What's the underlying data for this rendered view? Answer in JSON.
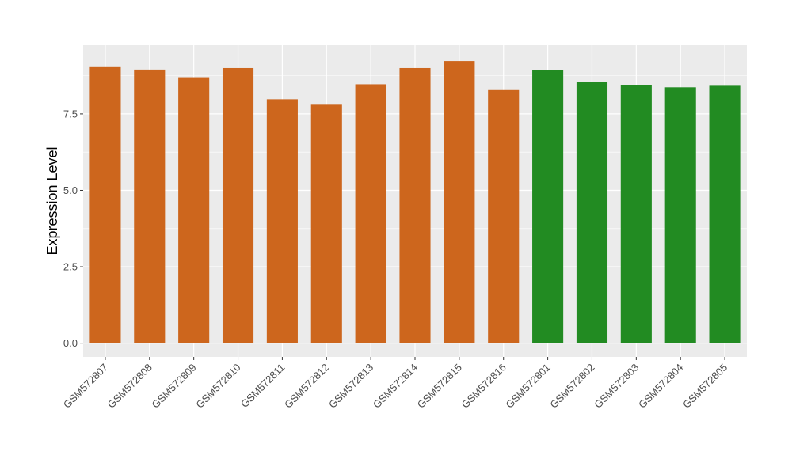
{
  "chart_data": {
    "type": "bar",
    "title": "",
    "xlabel": "",
    "ylabel": "Expression Level",
    "ylim": [
      -0.45,
      9.75
    ],
    "yticks": [
      0.0,
      2.5,
      5.0,
      7.5
    ],
    "ytick_labels": [
      "0.0",
      "2.5",
      "5.0",
      "7.5"
    ],
    "grid": true,
    "legend": "none",
    "categories": [
      "GSM572807",
      "GSM572808",
      "GSM572809",
      "GSM572810",
      "GSM572811",
      "GSM572812",
      "GSM572813",
      "GSM572814",
      "GSM572815",
      "GSM572816",
      "GSM572801",
      "GSM572802",
      "GSM572803",
      "GSM572804",
      "GSM572805"
    ],
    "values": [
      9.03,
      8.95,
      8.7,
      9.0,
      7.98,
      7.8,
      8.47,
      9.0,
      9.23,
      8.28,
      8.93,
      8.55,
      8.45,
      8.37,
      8.42
    ],
    "bar_colors": [
      "#CD661D",
      "#CD661D",
      "#CD661D",
      "#CD661D",
      "#CD661D",
      "#CD661D",
      "#CD661D",
      "#CD661D",
      "#CD661D",
      "#CD661D",
      "#228B22",
      "#228B22",
      "#228B22",
      "#228B22",
      "#228B22"
    ],
    "panel_background": "#EBEBEB",
    "grid_color": "#FFFFFF"
  }
}
